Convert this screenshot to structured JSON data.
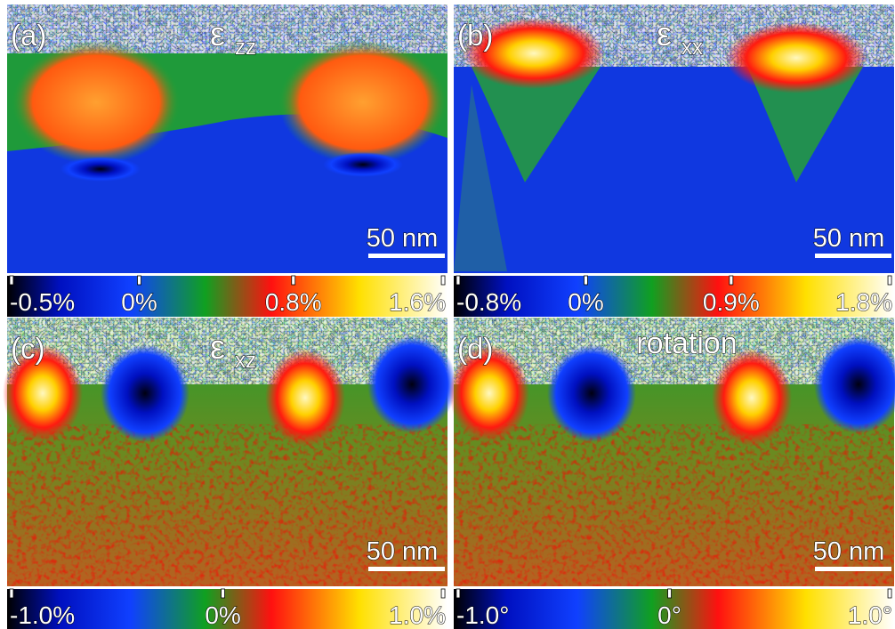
{
  "panels": [
    {
      "label": "(a)",
      "title": {
        "symbol": "ε",
        "subscript": "zz"
      },
      "scale_bar": "50 nm",
      "colorbar_ticks": [
        "-0.5%",
        "0%",
        "0.8%",
        "1.6%"
      ]
    },
    {
      "label": "(b)",
      "title": {
        "symbol": "ε",
        "subscript": "xx"
      },
      "scale_bar": "50 nm",
      "colorbar_ticks": [
        "-0.8%",
        "0%",
        "0.9%",
        "1.8%"
      ]
    },
    {
      "label": "(c)",
      "title": {
        "symbol": "ε",
        "subscript": "xz"
      },
      "scale_bar": "50 nm",
      "colorbar_ticks": [
        "-1.0%",
        "0%",
        "1.0%"
      ]
    },
    {
      "label": "(d)",
      "title": {
        "text": "rotation"
      },
      "scale_bar": "50 nm",
      "colorbar_ticks": [
        "-1.0°",
        "0°",
        "1.0°"
      ]
    }
  ]
}
